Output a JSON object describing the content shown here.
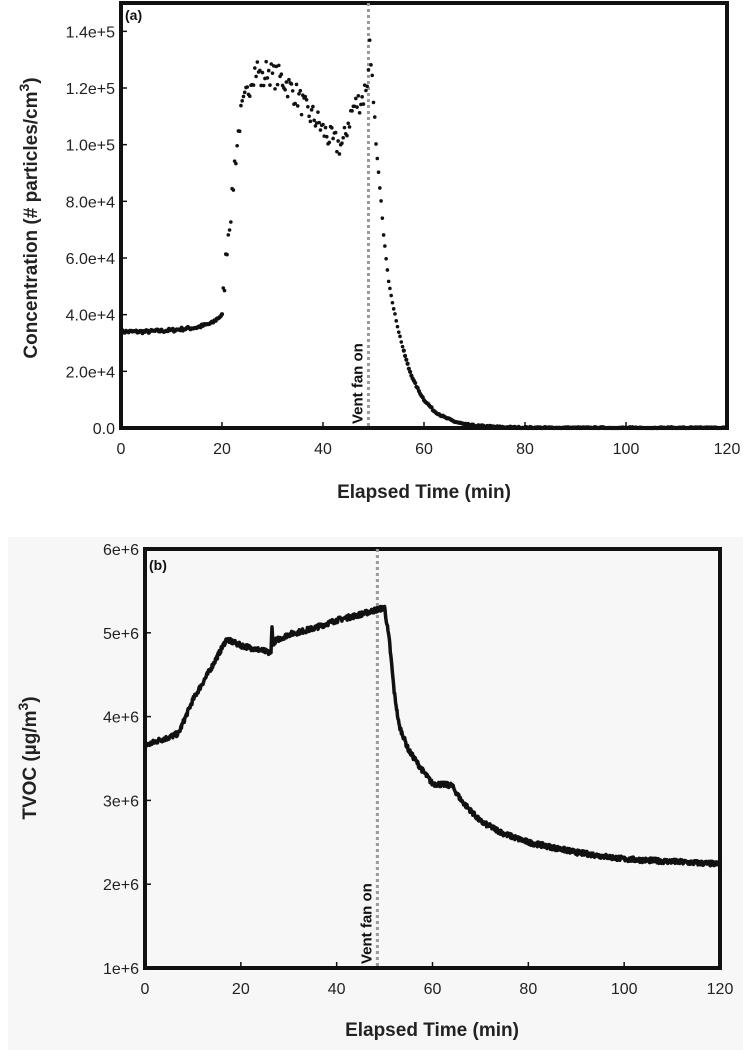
{
  "chart_data": [
    {
      "type": "scatter",
      "panel_label": "(a)",
      "title": "",
      "xlabel": "Elapsed Time (min)",
      "ylabel": "Concentration (# particles/cm",
      "ylabel_sup": "3",
      "ylabel_close": ")",
      "xlim": [
        0,
        120
      ],
      "ylim": [
        0,
        150000
      ],
      "xticks": [
        0,
        20,
        40,
        60,
        80,
        100,
        120
      ],
      "xtick_labels": [
        "0",
        "20",
        "40",
        "60",
        "80",
        "100",
        "120"
      ],
      "yticks": [
        0,
        20000,
        40000,
        60000,
        80000,
        100000,
        120000,
        140000
      ],
      "ytick_labels": [
        "0.0",
        "2.0e+4",
        "4.0e+4",
        "6.0e+4",
        "8.0e+4",
        "1.0e+5",
        "1.2e+5",
        "1.4e+5"
      ],
      "grid": false,
      "annotation": {
        "text": "Vent fan on",
        "x": 49
      },
      "series": [
        {
          "name": "particle concentration",
          "x": [
            0,
            5,
            10,
            15,
            18,
            19,
            20,
            20.5,
            21,
            21.5,
            22,
            22.5,
            23,
            23.5,
            24,
            25,
            26,
            27,
            28,
            29,
            30,
            31,
            32,
            33,
            34,
            35,
            36,
            37,
            38,
            39,
            40,
            41,
            42,
            43,
            44,
            45,
            46,
            47,
            48,
            49,
            49.3,
            50,
            50.5,
            51,
            51.5,
            52,
            53,
            54,
            55,
            56,
            57,
            58,
            59,
            60,
            62,
            64,
            66,
            68,
            70,
            75,
            80,
            90,
            100,
            110,
            120
          ],
          "y": [
            34000,
            34000,
            34500,
            35500,
            37000,
            38500,
            40000,
            52000,
            65000,
            73000,
            80000,
            93000,
            100000,
            108000,
            112000,
            118000,
            125000,
            127000,
            122000,
            127000,
            124000,
            124000,
            123000,
            121000,
            119000,
            117000,
            114000,
            111000,
            110000,
            108000,
            105000,
            103000,
            101000,
            100000,
            100000,
            108000,
            113000,
            115000,
            117000,
            125000,
            140000,
            112000,
            100000,
            90000,
            80000,
            68000,
            52000,
            42000,
            34000,
            27000,
            21000,
            16500,
            13000,
            10000,
            6000,
            3800,
            2300,
            1300,
            800,
            300,
            100,
            0,
            0,
            0,
            0
          ]
        }
      ]
    },
    {
      "type": "line",
      "panel_label": "(b)",
      "title": "",
      "xlabel": "Elapsed Time (min)",
      "ylabel": "TVOC (µg/m",
      "ylabel_sup": "3",
      "ylabel_close": ")",
      "xlim": [
        0,
        120
      ],
      "ylim": [
        1000000,
        6000000
      ],
      "xticks": [
        0,
        20,
        40,
        60,
        80,
        100,
        120
      ],
      "xtick_labels": [
        "0",
        "20",
        "40",
        "60",
        "80",
        "100",
        "120"
      ],
      "yticks": [
        1000000,
        2000000,
        3000000,
        4000000,
        5000000,
        6000000
      ],
      "ytick_labels": [
        "1e+6",
        "2e+6",
        "3e+6",
        "4e+6",
        "5e+6",
        "6e+6"
      ],
      "grid": false,
      "annotation": {
        "text": "Vent fan on",
        "x": 48.5
      },
      "series": [
        {
          "name": "TVOC",
          "x": [
            0,
            3,
            5,
            7,
            10,
            14,
            17,
            20,
            25,
            26.3,
            26.5,
            26.7,
            27,
            30,
            35,
            40,
            45,
            48,
            50,
            51,
            52,
            53,
            55,
            58,
            60,
            64,
            66,
            70,
            75,
            80,
            90,
            100,
            110,
            120
          ],
          "y": [
            3650000,
            3720000,
            3750000,
            3800000,
            4200000,
            4600000,
            4920000,
            4850000,
            4780000,
            4750000,
            5100000,
            4850000,
            4900000,
            4980000,
            5050000,
            5150000,
            5220000,
            5270000,
            5300000,
            4900000,
            4300000,
            3900000,
            3600000,
            3350000,
            3200000,
            3180000,
            3000000,
            2750000,
            2600000,
            2500000,
            2380000,
            2300000,
            2270000,
            2240000
          ]
        }
      ]
    }
  ],
  "colors": {
    "marker": "#111111",
    "vent_line": "#999999",
    "panel_b_bg": "#f7f7f7",
    "axes": "#111111"
  }
}
